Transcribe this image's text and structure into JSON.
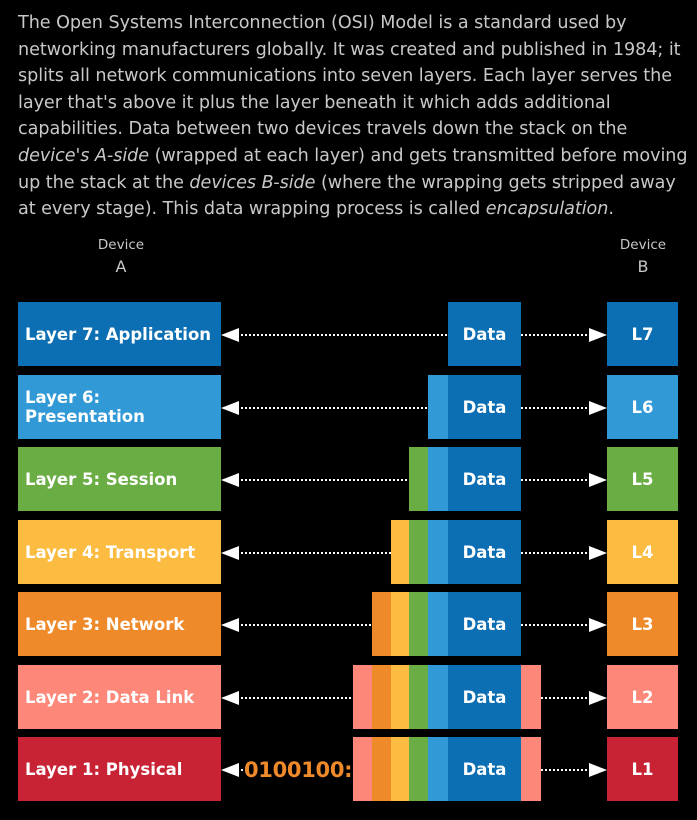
{
  "intro": {
    "p1": "The Open Systems Interconnection (OSI) Model is a standard used by networking manufacturers globally. It was created and published in 1984; it splits all network communications into seven layers. Each layer serves the layer that's above it plus the layer beneath it which adds additional capabilities. Data between two devices travels down the stack on the ",
    "em1": "device's A-side",
    "p2": " (wrapped at each layer) and gets transmitted before moving up the stack at the ",
    "em2": "devices B-side",
    "p3": " (where the wrapping gets stripped away at every stage). This data wrapping process is called ",
    "em3": "encapsulation",
    "p4": "."
  },
  "device_a": {
    "line1": "Device",
    "line2": "A"
  },
  "device_b": {
    "line1": "Device",
    "line2": "B"
  },
  "data_label": "Data",
  "bits_label": "0100100:",
  "colors": {
    "l7": "#0d6fb3",
    "l6": "#3199d6",
    "l5": "#6aad45",
    "l4": "#fbbc41",
    "l3": "#ef8a2b",
    "l2": "#fd8778",
    "l1": "#c82334",
    "arrow": "#ffffff",
    "bits": "#ef8a2b"
  },
  "layers": [
    {
      "number": 7,
      "name": "Layer 7: Application",
      "short": "L7"
    },
    {
      "number": 6,
      "name": "Layer 6: Presentation",
      "short": "L6"
    },
    {
      "number": 5,
      "name": "Layer 5: Session",
      "short": "L5"
    },
    {
      "number": 4,
      "name": "Layer 4: Transport",
      "short": "L4"
    },
    {
      "number": 3,
      "name": "Layer 3: Network",
      "short": "L3"
    },
    {
      "number": 2,
      "name": "Layer 2: Data Link",
      "short": "L2"
    },
    {
      "number": 1,
      "name": "Layer 1: Physical",
      "short": "L1"
    }
  ]
}
